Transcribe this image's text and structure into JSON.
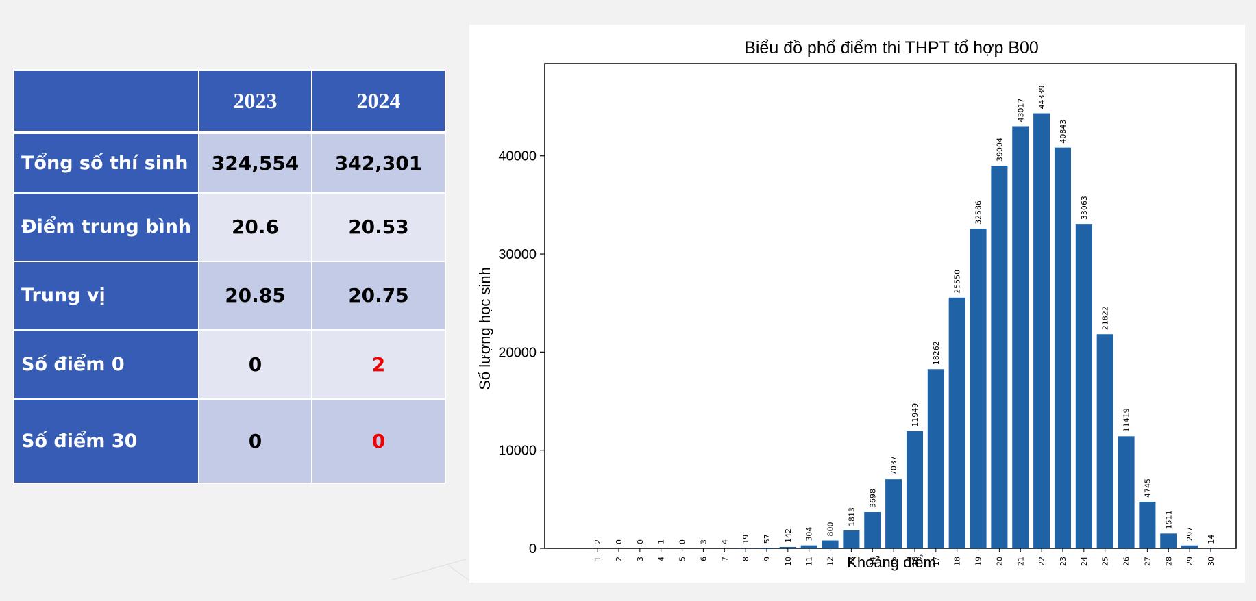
{
  "table": {
    "headers": [
      "",
      "2023",
      "2024"
    ],
    "rows": [
      {
        "label": "Tổng số thí sinh",
        "v2023": "324,554",
        "v2024": "342,301",
        "red2024": false
      },
      {
        "label": "Điểm trung bình",
        "v2023": "20.6",
        "v2024": "20.53",
        "red2024": false
      },
      {
        "label": "Trung vị",
        "v2023": "20.85",
        "v2024": "20.75",
        "red2024": false
      },
      {
        "label": "Số điểm 0",
        "v2023": "0",
        "v2024": "2",
        "red2024": true
      },
      {
        "label": "Số điểm 30",
        "v2023": "0",
        "v2024": "0",
        "red2024": true
      }
    ],
    "colors": {
      "header_bg": "#365cb6",
      "cell_dark": "#c3cbe6",
      "cell_light": "#e3e6f2",
      "highlight": "#f00000"
    }
  },
  "chart_data": {
    "type": "bar",
    "title": "Biểu đồ phổ điểm thi THPT tổ hợp B00",
    "xlabel": "Khoảng điểm",
    "ylabel": "Số lượng học sinh",
    "categories": [
      "1",
      "2",
      "3",
      "4",
      "5",
      "6",
      "7",
      "8",
      "9",
      "10",
      "11",
      "12",
      "13",
      "14",
      "15",
      "16",
      "17",
      "18",
      "19",
      "20",
      "21",
      "22",
      "23",
      "24",
      "25",
      "26",
      "27",
      "28",
      "29",
      "30"
    ],
    "values": [
      2,
      0,
      0,
      1,
      0,
      3,
      4,
      19,
      57,
      142,
      304,
      800,
      1813,
      3698,
      7037,
      11949,
      18262,
      25550,
      32586,
      39004,
      43017,
      44339,
      40843,
      33063,
      21822,
      11419,
      4745,
      1511,
      297,
      14
    ],
    "data_labels": [
      "2",
      "0",
      "0",
      "1",
      "0",
      "3",
      "4",
      "19",
      "57",
      "142",
      "304",
      "800",
      "1813",
      "3698",
      "7037",
      "11949",
      "18262",
      "25550",
      "32586",
      "39004",
      "43017",
      "44339",
      "40843",
      "33063",
      "21822",
      "11419",
      "4745",
      "1511",
      "297",
      "14"
    ],
    "yticks": [
      "0",
      "10000",
      "20000",
      "30000",
      "40000"
    ],
    "ytick_values": [
      0,
      10000,
      20000,
      30000,
      40000
    ],
    "ylim": [
      0,
      49400
    ],
    "xlim": [
      -1.5,
      31.2
    ],
    "grid": false,
    "bar_color": "#1f63a6"
  }
}
